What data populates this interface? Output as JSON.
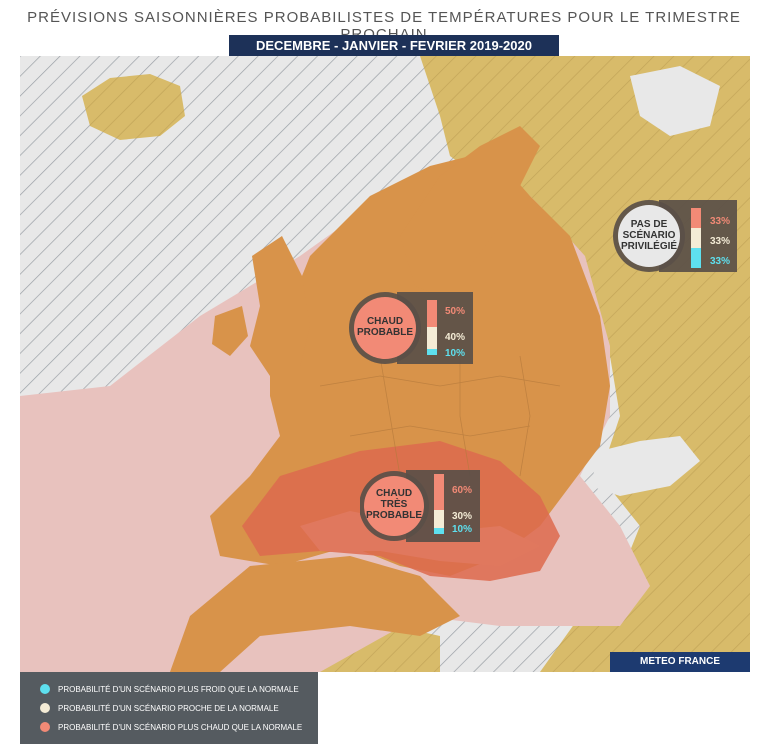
{
  "header": {
    "title": "PRÉVISIONS SAISONNIÈRES PROBABILISTES DE TEMPÉRATURES POUR LE TRIMESTRE PROCHAIN",
    "period": "DECEMBRE - JANVIER - FEVRIER  2019-2020"
  },
  "colors": {
    "hatch_bg": "#e6e6e6",
    "land_neutral": "#d8bb6a",
    "sea_warm": "#e8c2be",
    "land_warm": "#d8934a",
    "very_warm": "#dd6a4e",
    "warm_circle": "#f28a76",
    "cold": "#5ee0ef",
    "normal": "#f4ecd6",
    "dark_badge": "#5a4f48",
    "legend_bg": "#555b60",
    "brand_bg": "#1d3a70"
  },
  "badges": [
    {
      "id": "chaud",
      "label_line1": "CHAUD",
      "label_line2": "PROBABLE",
      "label_line3": "",
      "warm": "50%",
      "normal": "40%",
      "cold": "10%",
      "warm_value": 50,
      "normal_value": 40,
      "cold_value": 10
    },
    {
      "id": "tres-chaud",
      "label_line1": "CHAUD",
      "label_line2": "TRÈS",
      "label_line3": "PROBABLE",
      "warm": "60%",
      "normal": "30%",
      "cold": "10%",
      "warm_value": 60,
      "normal_value": 30,
      "cold_value": 10
    },
    {
      "id": "neutre",
      "label_line1": "PAS DE",
      "label_line2": "SCÉNARIO",
      "label_line3": "PRIVILÉGIÉ",
      "warm": "33%",
      "normal": "33%",
      "cold": "33%",
      "warm_value": 33,
      "normal_value": 33,
      "cold_value": 33
    }
  ],
  "brand": "METEO FRANCE",
  "legend": [
    {
      "label": "PROBABILITÉ D'UN SCÉNARIO PLUS FROID QUE LA NORMALE",
      "color": "#5ee0ef"
    },
    {
      "label": "PROBABILITÉ D'UN SCÉNARIO PROCHE DE LA NORMALE",
      "color": "#f4ecd6"
    },
    {
      "label": "PROBABILITÉ D'UN SCÉNARIO  PLUS CHAUD QUE LA NORMALE",
      "color": "#f28a76"
    }
  ]
}
